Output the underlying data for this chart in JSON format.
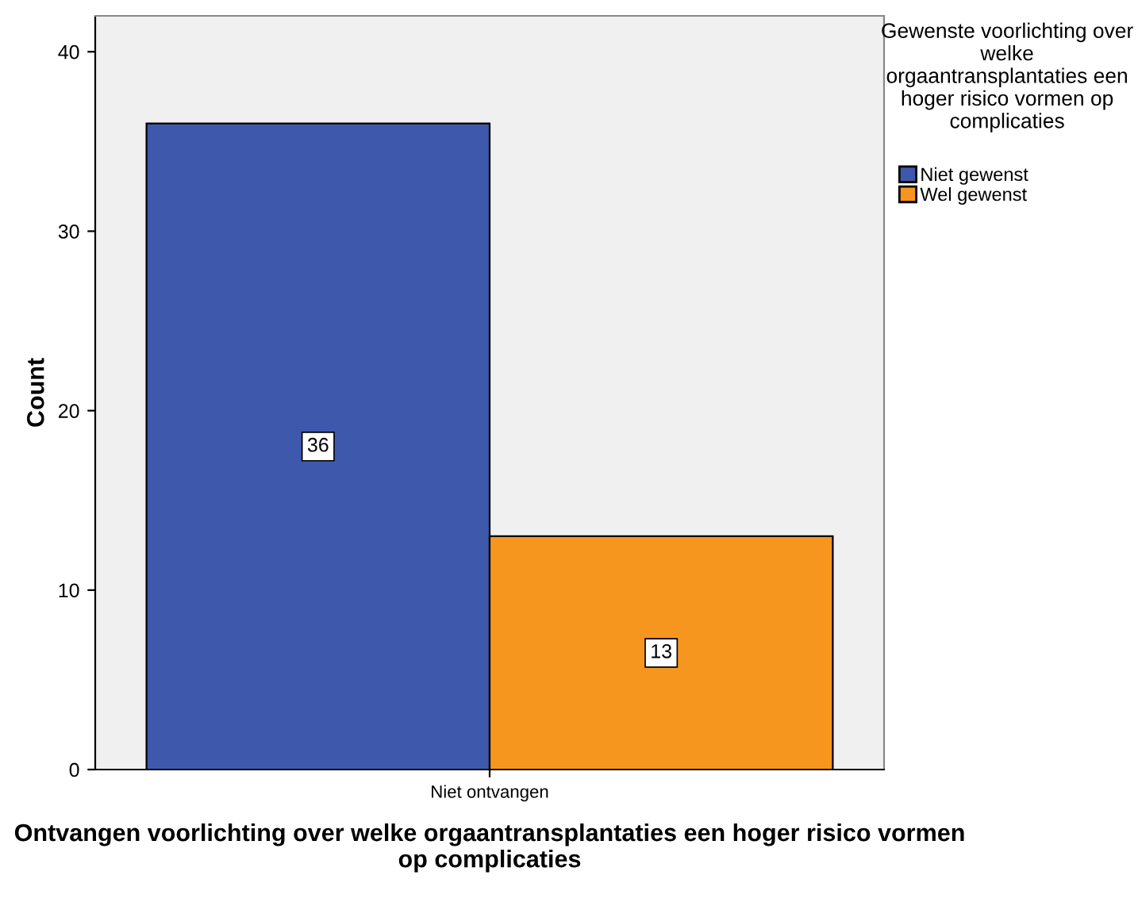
{
  "chart_data": {
    "type": "bar",
    "categories": [
      "Niet ontvangen"
    ],
    "series": [
      {
        "name": "Niet gewenst",
        "color": "#3e58ac",
        "values": [
          36
        ]
      },
      {
        "name": "Wel gewenst",
        "color": "#f7961e",
        "values": [
          13
        ]
      }
    ],
    "xlabel": "Ontvangen voorlichting over welke orgaantransplantaties een hoger risico vormen op complicaties",
    "ylabel": "Count",
    "legend_title": "Gewenste voorlichting over welke orgaantransplantaties een hoger risico vormen op complicaties",
    "ylim": [
      0,
      42
    ],
    "yticks": [
      0,
      10,
      20,
      30,
      40
    ],
    "grid": false,
    "legend": "top right",
    "data_labels": true
  }
}
